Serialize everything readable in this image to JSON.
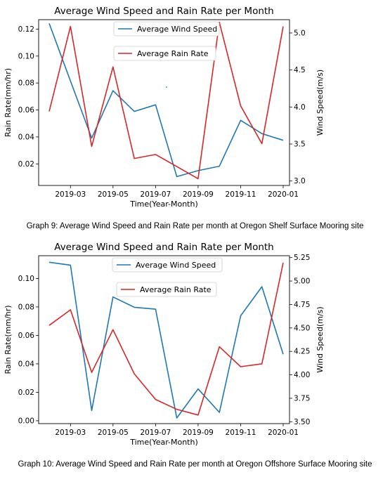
{
  "chart_data": [
    {
      "type": "line",
      "title": "Average Wind Speed and Rain Rate per Month",
      "xlabel": "Time(Year-Month)",
      "ylabel_left": "Rain Rate(mm/hr)",
      "ylabel_right": "Wind Speed(m/s)",
      "x": [
        "2019-02",
        "2019-03",
        "2019-04",
        "2019-05",
        "2019-06",
        "2019-07",
        "2019-08",
        "2019-09",
        "2019-10",
        "2019-11",
        "2019-12",
        "2020-01"
      ],
      "x_ticks": [
        "2019-03",
        "2019-05",
        "2019-07",
        "2019-09",
        "2019-11",
        "2020-01"
      ],
      "y_left_ticks": [
        "0.02",
        "0.04",
        "0.06",
        "0.08",
        "0.10",
        "0.12"
      ],
      "y_left_lim": [
        0.004,
        0.127
      ],
      "y_right_ticks": [
        "3.0",
        "3.5",
        "4.0",
        "4.5",
        "5.0"
      ],
      "y_right_lim": [
        2.94,
        5.18
      ],
      "series": [
        {
          "name": "Average Wind Speed",
          "axis": "right",
          "color": "#1f77b4",
          "values": [
            5.13,
            4.35,
            3.58,
            4.22,
            3.94,
            4.03,
            3.06,
            3.14,
            3.2,
            3.82,
            3.64,
            3.55
          ]
        },
        {
          "name": "Average Rain Rate",
          "axis": "left",
          "color": "#d62728",
          "values": [
            0.059,
            0.122,
            0.033,
            0.092,
            0.024,
            0.027,
            0.018,
            0.009,
            0.125,
            0.063,
            0.035,
            0.122
          ]
        }
      ],
      "legend": "top-center, separate boxes"
    },
    {
      "type": "line",
      "title": "Average Wind Speed and Rain Rate per Month",
      "xlabel": "Time(Year-Month)",
      "ylabel_left": "Rain Rate(mm/hr)",
      "ylabel_right": "Wind Speed(m/s)",
      "x": [
        "2019-02",
        "2019-03",
        "2019-04",
        "2019-05",
        "2019-06",
        "2019-07",
        "2019-08",
        "2019-09",
        "2019-10",
        "2019-11",
        "2019-12",
        "2020-01"
      ],
      "x_ticks": [
        "2019-03",
        "2019-05",
        "2019-07",
        "2019-09",
        "2019-11",
        "2020-01"
      ],
      "y_left_ticks": [
        "0.00",
        "0.02",
        "0.04",
        "0.06",
        "0.08",
        "0.10"
      ],
      "y_left_lim": [
        -0.002,
        0.116
      ],
      "y_right_ticks": [
        "3.50",
        "3.75",
        "4.00",
        "4.25",
        "4.50",
        "4.75",
        "5.00",
        "5.25"
      ],
      "y_right_lim": [
        3.48,
        5.27
      ],
      "series": [
        {
          "name": "Average Wind Speed",
          "axis": "right",
          "color": "#1f77b4",
          "values": [
            5.2,
            5.17,
            3.62,
            4.83,
            4.72,
            4.7,
            3.54,
            3.85,
            3.6,
            4.63,
            4.94,
            4.22
          ]
        },
        {
          "name": "Average Rain Rate",
          "axis": "left",
          "color": "#d62728",
          "values": [
            0.067,
            0.078,
            0.034,
            0.064,
            0.033,
            0.015,
            0.008,
            0.004,
            0.052,
            0.038,
            0.04,
            0.111
          ]
        }
      ],
      "legend": "top-center, separate boxes"
    }
  ],
  "captions": {
    "graph9": "Graph 9: Average Wind Speed and Rain Rate per month at Oregon Shelf Surface Mooring site",
    "graph10": "Graph 10: Average Wind Speed and Rain Rate per month at Oregon Offshore Surface Mooring site"
  }
}
